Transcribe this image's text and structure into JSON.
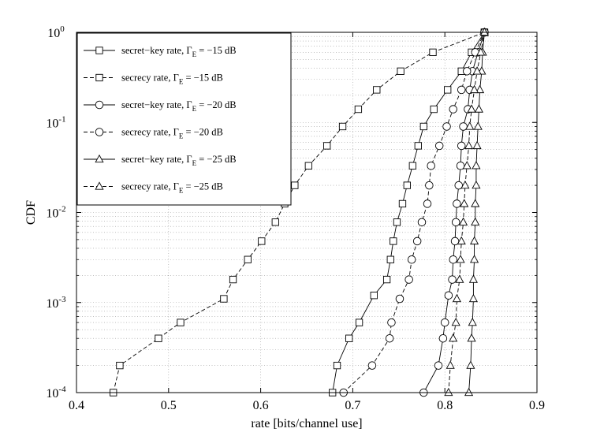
{
  "chart_data": {
    "type": "line",
    "title": "",
    "xlabel": "rate [bits/channel use]",
    "ylabel": "CDF",
    "xlim": [
      0.4,
      0.9
    ],
    "ylim": [
      0.0001,
      1
    ],
    "yscale": "log",
    "grid": true,
    "legend_position": "top-left",
    "x_ticks": [
      "0.4",
      "0.5",
      "0.6",
      "0.7",
      "0.8",
      "0.9"
    ],
    "y_ticks": [
      {
        "base": "10",
        "exp": "-4"
      },
      {
        "base": "10",
        "exp": "-3"
      },
      {
        "base": "10",
        "exp": "-2"
      },
      {
        "base": "10",
        "exp": "-1"
      },
      {
        "base": "10",
        "exp": "0"
      }
    ],
    "series": [
      {
        "name": "secret−key rate, Γ_E = −15 dB",
        "legend_prefix": "secret−key rate, Γ",
        "legend_sub": "E",
        "legend_suffix": " = −15 dB",
        "marker": "square",
        "dash": false,
        "points": [
          [
            0.678,
            0.0001
          ],
          [
            0.683,
            0.0002
          ],
          [
            0.696,
            0.0004
          ],
          [
            0.707,
            0.0006
          ],
          [
            0.723,
            0.0012
          ],
          [
            0.737,
            0.0018
          ],
          [
            0.741,
            0.003
          ],
          [
            0.744,
            0.0048
          ],
          [
            0.748,
            0.0078
          ],
          [
            0.754,
            0.0125
          ],
          [
            0.759,
            0.02
          ],
          [
            0.765,
            0.033
          ],
          [
            0.771,
            0.055
          ],
          [
            0.777,
            0.09
          ],
          [
            0.788,
            0.14
          ],
          [
            0.803,
            0.23
          ],
          [
            0.818,
            0.37
          ],
          [
            0.829,
            0.6
          ],
          [
            0.843,
            1.0
          ]
        ]
      },
      {
        "name": "secrecy rate, Γ_E = −15 dB",
        "legend_prefix": "secrecy rate, Γ",
        "legend_sub": "E",
        "legend_suffix": " = −15 dB",
        "marker": "square",
        "dash": true,
        "points": [
          [
            0.44,
            0.0001
          ],
          [
            0.447,
            0.0002
          ],
          [
            0.489,
            0.0004
          ],
          [
            0.513,
            0.0006
          ],
          [
            0.56,
            0.0011
          ],
          [
            0.57,
            0.0018
          ],
          [
            0.586,
            0.003
          ],
          [
            0.601,
            0.0048
          ],
          [
            0.616,
            0.0078
          ],
          [
            0.626,
            0.0125
          ],
          [
            0.637,
            0.02
          ],
          [
            0.652,
            0.033
          ],
          [
            0.672,
            0.055
          ],
          [
            0.689,
            0.09
          ],
          [
            0.706,
            0.14
          ],
          [
            0.726,
            0.23
          ],
          [
            0.752,
            0.37
          ],
          [
            0.787,
            0.6
          ],
          [
            0.843,
            1.0
          ]
        ]
      },
      {
        "name": "secret−key rate, Γ_E = −20 dB",
        "legend_prefix": "secret−key rate, Γ",
        "legend_sub": "E",
        "legend_suffix": " = −20 dB",
        "marker": "circle",
        "dash": false,
        "points": [
          [
            0.777,
            0.0001
          ],
          [
            0.793,
            0.0002
          ],
          [
            0.798,
            0.0004
          ],
          [
            0.8,
            0.0006
          ],
          [
            0.804,
            0.0012
          ],
          [
            0.808,
            0.0018
          ],
          [
            0.809,
            0.003
          ],
          [
            0.811,
            0.0048
          ],
          [
            0.812,
            0.0078
          ],
          [
            0.813,
            0.0125
          ],
          [
            0.815,
            0.02
          ],
          [
            0.817,
            0.033
          ],
          [
            0.818,
            0.055
          ],
          [
            0.82,
            0.09
          ],
          [
            0.825,
            0.14
          ],
          [
            0.827,
            0.23
          ],
          [
            0.83,
            0.37
          ],
          [
            0.836,
            0.6
          ],
          [
            0.843,
            1.0
          ]
        ]
      },
      {
        "name": "secrecy rate, Γ_E = −20 dB",
        "legend_prefix": "secrecy rate, Γ",
        "legend_sub": "E",
        "legend_suffix": " = −20 dB",
        "marker": "circle",
        "dash": true,
        "points": [
          [
            0.69,
            0.0001
          ],
          [
            0.721,
            0.0002
          ],
          [
            0.74,
            0.0004
          ],
          [
            0.742,
            0.0006
          ],
          [
            0.751,
            0.0011
          ],
          [
            0.761,
            0.0018
          ],
          [
            0.764,
            0.003
          ],
          [
            0.77,
            0.0048
          ],
          [
            0.775,
            0.0078
          ],
          [
            0.781,
            0.0125
          ],
          [
            0.783,
            0.02
          ],
          [
            0.785,
            0.033
          ],
          [
            0.794,
            0.055
          ],
          [
            0.802,
            0.09
          ],
          [
            0.809,
            0.14
          ],
          [
            0.818,
            0.23
          ],
          [
            0.824,
            0.37
          ],
          [
            0.833,
            0.6
          ],
          [
            0.843,
            1.0
          ]
        ]
      },
      {
        "name": "secret−key rate, Γ_E = −25 dB",
        "legend_prefix": "secret−key rate, Γ",
        "legend_sub": "E",
        "legend_suffix": " = −25 dB",
        "marker": "triangle",
        "dash": false,
        "points": [
          [
            0.826,
            0.0001
          ],
          [
            0.828,
            0.0002
          ],
          [
            0.829,
            0.0004
          ],
          [
            0.83,
            0.0006
          ],
          [
            0.831,
            0.0011
          ],
          [
            0.831,
            0.0018
          ],
          [
            0.832,
            0.003
          ],
          [
            0.832,
            0.0048
          ],
          [
            0.833,
            0.0078
          ],
          [
            0.833,
            0.0125
          ],
          [
            0.834,
            0.02
          ],
          [
            0.834,
            0.033
          ],
          [
            0.835,
            0.055
          ],
          [
            0.836,
            0.09
          ],
          [
            0.837,
            0.14
          ],
          [
            0.838,
            0.23
          ],
          [
            0.84,
            0.37
          ],
          [
            0.841,
            0.6
          ],
          [
            0.843,
            1.0
          ]
        ]
      },
      {
        "name": "secrecy rate, Γ_E = −25 dB",
        "legend_prefix": "secrecy rate, Γ",
        "legend_sub": "E",
        "legend_suffix": " = −25 dB",
        "marker": "triangle",
        "dash": true,
        "points": [
          [
            0.804,
            0.0001
          ],
          [
            0.806,
            0.0002
          ],
          [
            0.809,
            0.0004
          ],
          [
            0.812,
            0.0006
          ],
          [
            0.813,
            0.0011
          ],
          [
            0.816,
            0.0018
          ],
          [
            0.817,
            0.003
          ],
          [
            0.818,
            0.0048
          ],
          [
            0.82,
            0.0078
          ],
          [
            0.821,
            0.0125
          ],
          [
            0.822,
            0.02
          ],
          [
            0.824,
            0.033
          ],
          [
            0.826,
            0.055
          ],
          [
            0.827,
            0.09
          ],
          [
            0.829,
            0.14
          ],
          [
            0.832,
            0.23
          ],
          [
            0.835,
            0.37
          ],
          [
            0.839,
            0.6
          ],
          [
            0.843,
            1.0
          ]
        ]
      }
    ]
  }
}
